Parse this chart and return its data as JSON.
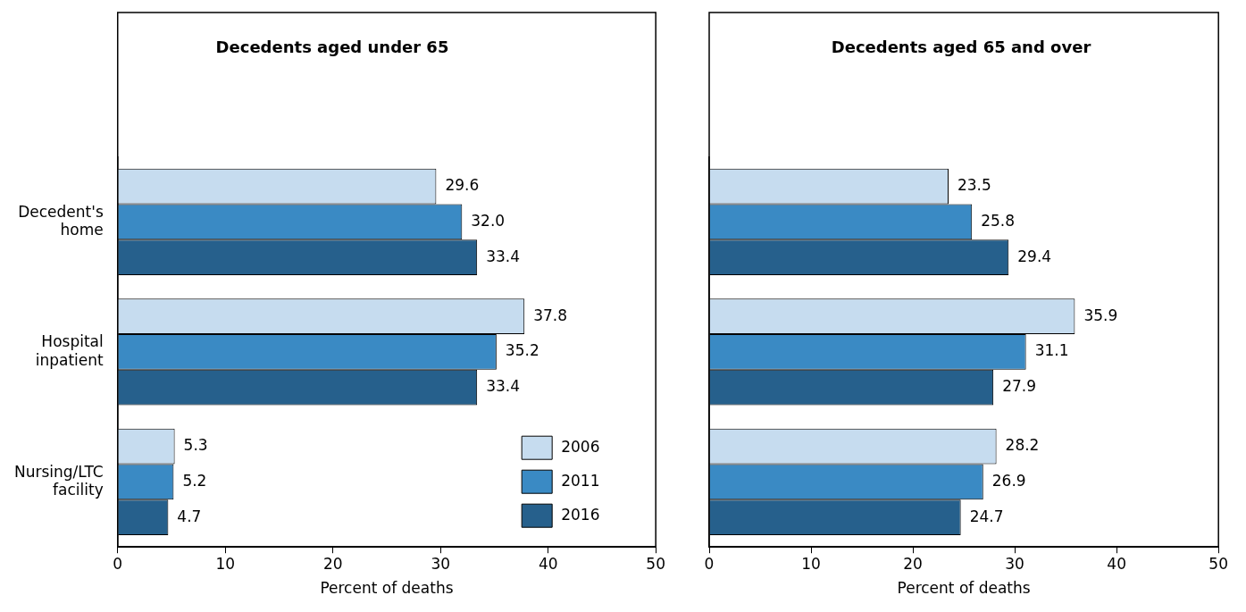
{
  "chart_data": [
    {
      "type": "bar",
      "orientation": "horizontal",
      "title": "Decedents aged under 65",
      "xlabel": "Percent of deaths",
      "categories": [
        "Decedent's home",
        "Hospital inpatient",
        "Nursing/LTC facility"
      ],
      "xlim": [
        0,
        50
      ],
      "xticks": [
        0,
        10,
        20,
        30,
        40,
        50
      ],
      "legend": "bottom right",
      "series": [
        {
          "name": "2006",
          "color": "#c6dcef",
          "values": [
            29.6,
            37.8,
            5.3
          ],
          "value_labels": [
            "29.6",
            "37.8",
            "5.3"
          ]
        },
        {
          "name": "2011",
          "color": "#3a8ac4",
          "values": [
            32.0,
            35.2,
            5.2
          ],
          "value_labels": [
            "32.0",
            "35.2",
            "5.2"
          ]
        },
        {
          "name": "2016",
          "color": "#26608c",
          "values": [
            33.4,
            33.4,
            4.7
          ],
          "value_labels": [
            "33.4",
            "33.4",
            "4.7"
          ]
        }
      ]
    },
    {
      "type": "bar",
      "orientation": "horizontal",
      "title": "Decedents aged 65 and over",
      "xlabel": "Percent of deaths",
      "categories": [
        null,
        null,
        null
      ],
      "xlim": [
        0,
        50
      ],
      "xticks": [
        0,
        10,
        20,
        30,
        40,
        50
      ],
      "tick_labels": "x",
      "series": [
        {
          "color": "#c6dcef",
          "values": [
            23.5,
            35.9,
            28.2
          ],
          "value_labels": [
            "23.5",
            "35.9",
            "28.2"
          ]
        },
        {
          "color": "#3a8ac4",
          "values": [
            25.8,
            31.1,
            26.9
          ],
          "value_labels": [
            "25.8",
            "31.1",
            "26.9"
          ]
        },
        {
          "color": "#26608c",
          "values": [
            29.4,
            27.9,
            24.7
          ],
          "value_labels": [
            "29.4",
            "27.9",
            "24.7"
          ]
        }
      ]
    }
  ]
}
